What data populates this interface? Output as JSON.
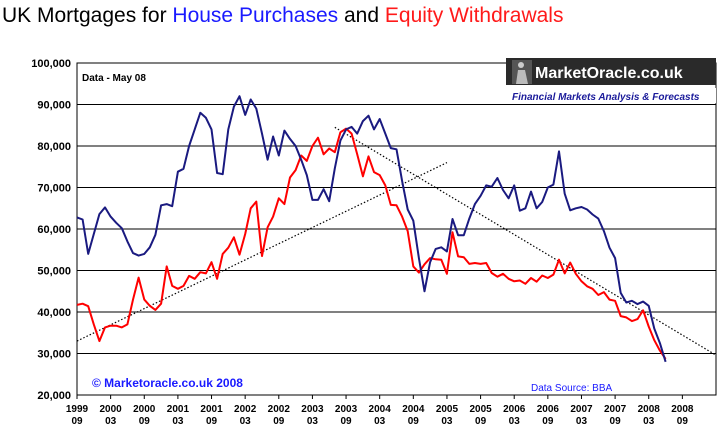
{
  "title": {
    "part1": "UK Mortgages for ",
    "part2": "House Purchases",
    "part3": " and ",
    "part4": "Equity Withdrawals"
  },
  "colors": {
    "purchases": "#1a1a80",
    "equity": "#ff0000",
    "title_blue": "#1a1aff",
    "title_red": "#ff1a1a",
    "plot_bg": "#ffffff",
    "grid": "#000000"
  },
  "annotations": {
    "data_date": "Data - May 08",
    "copyright": "© Marketoracle.co.uk 2008",
    "source": "Data Source: BBA"
  },
  "logo": {
    "name": "MarketOracle.co.uk",
    "tagline": "Financial Markets Analysis & Forecasts"
  },
  "chart_data": {
    "type": "line",
    "title": "UK Mortgages for House Purchases and Equity Withdrawals",
    "xlabel": "",
    "ylabel": "",
    "ylim": [
      20000,
      100000
    ],
    "xlim": [
      1999.667,
      2009.167
    ],
    "y_ticks": [
      "100,000",
      "90,000",
      "80,000",
      "70,000",
      "60,000",
      "50,000",
      "40,000",
      "30,000",
      "20,000"
    ],
    "y_tick_values": [
      100000,
      90000,
      80000,
      70000,
      60000,
      50000,
      40000,
      30000,
      20000
    ],
    "x_ticks": [
      {
        "year": "1999",
        "month": "09"
      },
      {
        "year": "2000",
        "month": "03"
      },
      {
        "year": "2000",
        "month": "09"
      },
      {
        "year": "2001",
        "month": "03"
      },
      {
        "year": "2001",
        "month": "09"
      },
      {
        "year": "2002",
        "month": "03"
      },
      {
        "year": "2002",
        "month": "09"
      },
      {
        "year": "2003",
        "month": "03"
      },
      {
        "year": "2003",
        "month": "09"
      },
      {
        "year": "2004",
        "month": "03"
      },
      {
        "year": "2004",
        "month": "09"
      },
      {
        "year": "2005",
        "month": "03"
      },
      {
        "year": "2005",
        "month": "09"
      },
      {
        "year": "2006",
        "month": "03"
      },
      {
        "year": "2006",
        "month": "09"
      },
      {
        "year": "2007",
        "month": "03"
      },
      {
        "year": "2007",
        "month": "09"
      },
      {
        "year": "2008",
        "month": "03"
      },
      {
        "year": "2008",
        "month": "09"
      }
    ],
    "x_tick_values": [
      1999.667,
      2000.167,
      2000.667,
      2001.167,
      2001.667,
      2002.167,
      2002.667,
      2003.167,
      2003.667,
      2004.167,
      2004.667,
      2005.167,
      2005.667,
      2006.167,
      2006.667,
      2007.167,
      2007.667,
      2008.167,
      2008.667
    ],
    "grid": true,
    "series": [
      {
        "name": "House Purchases",
        "color": "#1a1a80",
        "points": [
          [
            1999.667,
            62800
          ],
          [
            1999.75,
            62300
          ],
          [
            1999.833,
            54000
          ],
          [
            1999.917,
            58800
          ],
          [
            2000.0,
            63600
          ],
          [
            2000.083,
            65200
          ],
          [
            2000.167,
            63000
          ],
          [
            2000.25,
            61500
          ],
          [
            2000.333,
            60200
          ],
          [
            2000.417,
            57000
          ],
          [
            2000.5,
            54200
          ],
          [
            2000.583,
            53600
          ],
          [
            2000.667,
            54000
          ],
          [
            2000.75,
            55600
          ],
          [
            2000.833,
            58600
          ],
          [
            2000.917,
            65700
          ],
          [
            2001.0,
            66000
          ],
          [
            2001.083,
            65500
          ],
          [
            2001.167,
            73800
          ],
          [
            2001.25,
            74500
          ],
          [
            2001.333,
            80000
          ],
          [
            2001.417,
            84000
          ],
          [
            2001.5,
            88000
          ],
          [
            2001.583,
            86800
          ],
          [
            2001.667,
            84000
          ],
          [
            2001.75,
            73500
          ],
          [
            2001.833,
            73200
          ],
          [
            2001.917,
            84000
          ],
          [
            2002.0,
            89500
          ],
          [
            2002.083,
            92000
          ],
          [
            2002.167,
            87500
          ],
          [
            2002.25,
            91200
          ],
          [
            2002.333,
            89000
          ],
          [
            2002.417,
            83000
          ],
          [
            2002.5,
            76700
          ],
          [
            2002.583,
            82300
          ],
          [
            2002.667,
            77700
          ],
          [
            2002.75,
            83700
          ],
          [
            2002.833,
            81700
          ],
          [
            2002.917,
            80000
          ],
          [
            2003.0,
            76700
          ],
          [
            2003.083,
            73000
          ],
          [
            2003.167,
            67000
          ],
          [
            2003.25,
            67000
          ],
          [
            2003.333,
            69600
          ],
          [
            2003.417,
            66700
          ],
          [
            2003.5,
            74600
          ],
          [
            2003.583,
            81300
          ],
          [
            2003.667,
            84000
          ],
          [
            2003.75,
            84600
          ],
          [
            2003.833,
            83000
          ],
          [
            2003.917,
            86000
          ],
          [
            2004.0,
            87300
          ],
          [
            2004.083,
            84000
          ],
          [
            2004.167,
            86500
          ],
          [
            2004.25,
            83000
          ],
          [
            2004.333,
            79500
          ],
          [
            2004.417,
            79200
          ],
          [
            2004.5,
            71600
          ],
          [
            2004.583,
            64700
          ],
          [
            2004.667,
            62000
          ],
          [
            2004.75,
            53000
          ],
          [
            2004.833,
            45000
          ],
          [
            2004.917,
            52000
          ],
          [
            2005.0,
            55200
          ],
          [
            2005.083,
            55600
          ],
          [
            2005.167,
            54600
          ],
          [
            2005.25,
            62400
          ],
          [
            2005.333,
            58500
          ],
          [
            2005.417,
            58500
          ],
          [
            2005.5,
            62500
          ],
          [
            2005.583,
            66000
          ],
          [
            2005.667,
            68000
          ],
          [
            2005.75,
            70500
          ],
          [
            2005.833,
            70200
          ],
          [
            2005.917,
            72300
          ],
          [
            2006.0,
            69400
          ],
          [
            2006.083,
            67400
          ],
          [
            2006.167,
            70500
          ],
          [
            2006.25,
            64400
          ],
          [
            2006.333,
            65000
          ],
          [
            2006.417,
            69000
          ],
          [
            2006.5,
            65000
          ],
          [
            2006.583,
            66500
          ],
          [
            2006.667,
            70000
          ],
          [
            2006.75,
            70700
          ],
          [
            2006.833,
            78700
          ],
          [
            2006.917,
            68500
          ],
          [
            2007.0,
            64500
          ],
          [
            2007.083,
            65000
          ],
          [
            2007.167,
            65300
          ],
          [
            2007.25,
            64700
          ],
          [
            2007.333,
            63500
          ],
          [
            2007.417,
            62500
          ],
          [
            2007.5,
            59500
          ],
          [
            2007.583,
            55500
          ],
          [
            2007.667,
            53000
          ],
          [
            2007.75,
            44600
          ],
          [
            2007.833,
            42300
          ],
          [
            2007.917,
            42700
          ],
          [
            2008.0,
            41900
          ],
          [
            2008.083,
            42500
          ],
          [
            2008.167,
            41500
          ],
          [
            2008.25,
            36000
          ],
          [
            2008.333,
            32500
          ],
          [
            2008.417,
            28000
          ]
        ]
      },
      {
        "name": "Equity Withdrawals",
        "color": "#ff0000",
        "points": [
          [
            1999.667,
            41700
          ],
          [
            1999.75,
            42000
          ],
          [
            1999.833,
            41400
          ],
          [
            1999.917,
            37000
          ],
          [
            2000.0,
            33000
          ],
          [
            2000.083,
            36300
          ],
          [
            2000.167,
            36700
          ],
          [
            2000.25,
            36700
          ],
          [
            2000.333,
            36300
          ],
          [
            2000.417,
            37000
          ],
          [
            2000.5,
            43000
          ],
          [
            2000.583,
            48300
          ],
          [
            2000.667,
            43000
          ],
          [
            2000.75,
            41500
          ],
          [
            2000.833,
            40500
          ],
          [
            2000.917,
            42000
          ],
          [
            2001.0,
            51000
          ],
          [
            2001.083,
            46300
          ],
          [
            2001.167,
            45600
          ],
          [
            2001.25,
            46300
          ],
          [
            2001.333,
            48700
          ],
          [
            2001.417,
            48000
          ],
          [
            2001.5,
            49600
          ],
          [
            2001.583,
            49300
          ],
          [
            2001.667,
            52000
          ],
          [
            2001.75,
            48000
          ],
          [
            2001.833,
            54000
          ],
          [
            2001.917,
            55500
          ],
          [
            2002.0,
            58000
          ],
          [
            2002.083,
            53800
          ],
          [
            2002.167,
            58800
          ],
          [
            2002.25,
            65000
          ],
          [
            2002.333,
            66600
          ],
          [
            2002.417,
            53500
          ],
          [
            2002.5,
            60400
          ],
          [
            2002.583,
            63000
          ],
          [
            2002.667,
            67400
          ],
          [
            2002.75,
            66000
          ],
          [
            2002.833,
            72400
          ],
          [
            2002.917,
            74200
          ],
          [
            2003.0,
            77700
          ],
          [
            2003.083,
            76400
          ],
          [
            2003.167,
            80000
          ],
          [
            2003.25,
            82000
          ],
          [
            2003.333,
            78000
          ],
          [
            2003.417,
            79400
          ],
          [
            2003.5,
            78500
          ],
          [
            2003.583,
            83300
          ],
          [
            2003.667,
            84200
          ],
          [
            2003.75,
            83000
          ],
          [
            2003.833,
            78000
          ],
          [
            2003.917,
            72700
          ],
          [
            2004.0,
            77500
          ],
          [
            2004.083,
            73700
          ],
          [
            2004.167,
            73000
          ],
          [
            2004.25,
            70500
          ],
          [
            2004.333,
            65800
          ],
          [
            2004.417,
            65700
          ],
          [
            2004.5,
            63000
          ],
          [
            2004.583,
            59500
          ],
          [
            2004.667,
            51000
          ],
          [
            2004.75,
            49500
          ],
          [
            2004.833,
            51500
          ],
          [
            2004.917,
            53000
          ],
          [
            2005.0,
            52700
          ],
          [
            2005.083,
            52600
          ],
          [
            2005.167,
            49200
          ],
          [
            2005.25,
            59200
          ],
          [
            2005.333,
            53400
          ],
          [
            2005.417,
            53200
          ],
          [
            2005.5,
            51600
          ],
          [
            2005.583,
            51800
          ],
          [
            2005.667,
            51600
          ],
          [
            2005.75,
            51800
          ],
          [
            2005.833,
            49400
          ],
          [
            2005.917,
            48500
          ],
          [
            2006.0,
            49200
          ],
          [
            2006.083,
            48000
          ],
          [
            2006.167,
            47400
          ],
          [
            2006.25,
            47600
          ],
          [
            2006.333,
            46800
          ],
          [
            2006.417,
            48200
          ],
          [
            2006.5,
            47300
          ],
          [
            2006.583,
            48800
          ],
          [
            2006.667,
            48200
          ],
          [
            2006.75,
            49000
          ],
          [
            2006.833,
            52600
          ],
          [
            2006.917,
            49300
          ],
          [
            2007.0,
            51900
          ],
          [
            2007.083,
            49200
          ],
          [
            2007.167,
            47400
          ],
          [
            2007.25,
            46200
          ],
          [
            2007.333,
            45600
          ],
          [
            2007.417,
            44100
          ],
          [
            2007.5,
            44800
          ],
          [
            2007.583,
            43000
          ],
          [
            2007.667,
            42700
          ],
          [
            2007.75,
            39000
          ],
          [
            2007.833,
            38700
          ],
          [
            2007.917,
            37800
          ],
          [
            2008.0,
            38300
          ],
          [
            2008.083,
            40400
          ],
          [
            2008.167,
            36500
          ],
          [
            2008.25,
            33200
          ],
          [
            2008.333,
            30700
          ],
          [
            2008.417,
            28700
          ]
        ]
      }
    ],
    "trendlines": [
      {
        "name": "rising-trend",
        "style": "dotted",
        "from": [
          1999.667,
          33000
        ],
        "to": [
          2005.167,
          76000
        ]
      },
      {
        "name": "falling-trend",
        "style": "dotted",
        "from": [
          2003.5,
          84500
        ],
        "to": [
          2009.167,
          29600
        ]
      }
    ]
  }
}
